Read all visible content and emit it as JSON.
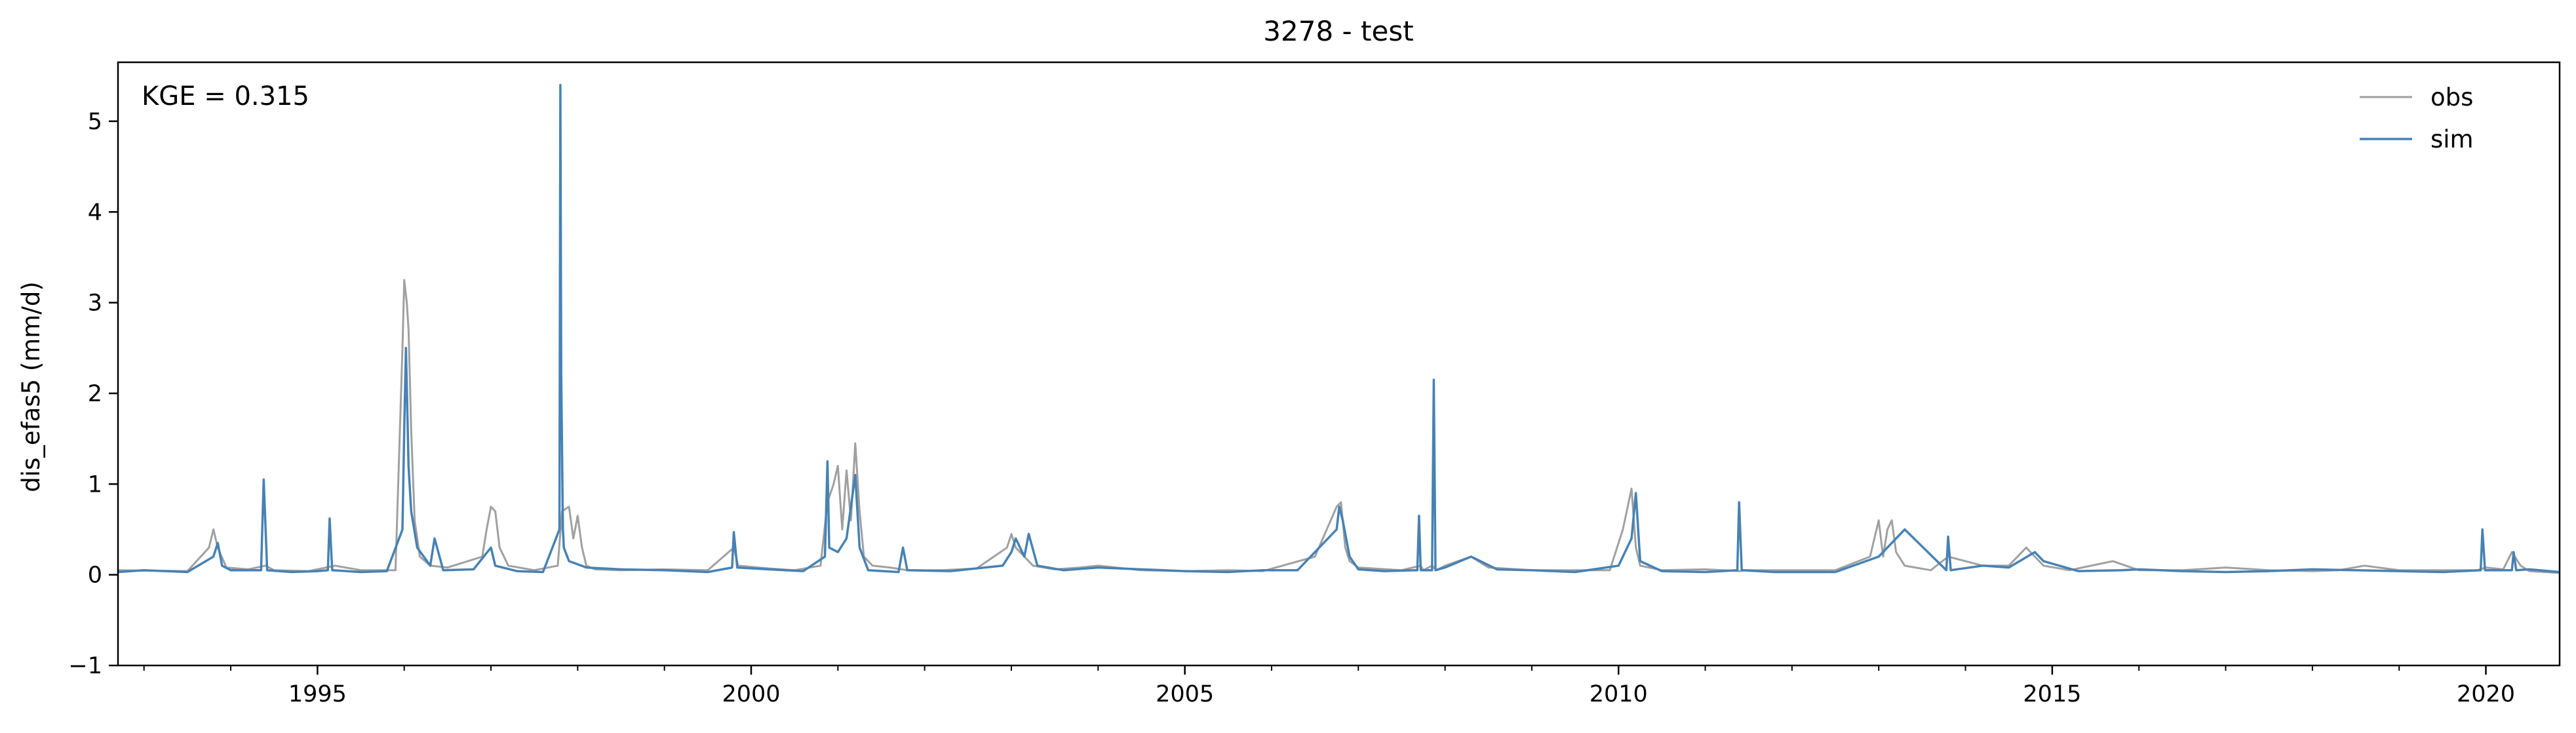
{
  "chart_data": {
    "type": "line",
    "title": "3278 - test",
    "xlabel": "",
    "ylabel": "dis_efas5 (mm/d)",
    "annotation": "KGE = 0.315",
    "xlim": [
      1992.7,
      2020.85
    ],
    "ylim": [
      -1,
      5.65
    ],
    "x_ticks": [
      1995,
      2000,
      2005,
      2010,
      2015,
      2020
    ],
    "x_tick_labels": [
      "1995",
      "2000",
      "2005",
      "2010",
      "2015",
      "2020"
    ],
    "y_ticks": [
      -1,
      0,
      1,
      2,
      3,
      4,
      5
    ],
    "y_tick_labels": [
      "−1",
      "0",
      "1",
      "2",
      "3",
      "4",
      "5"
    ],
    "grid": false,
    "legend_position": "top-right",
    "series": [
      {
        "name": "obs",
        "color": "#a0a0a0",
        "x": [
          1992.7,
          1993.5,
          1993.75,
          1993.8,
          1993.85,
          1993.95,
          1994.2,
          1994.4,
          1994.5,
          1994.9,
          1995.2,
          1995.5,
          1995.9,
          1995.98,
          1996.0,
          1996.03,
          1996.05,
          1996.08,
          1996.12,
          1996.18,
          1996.3,
          1996.5,
          1996.9,
          1996.95,
          1997.0,
          1997.05,
          1997.1,
          1997.2,
          1997.5,
          1997.77,
          1997.82,
          1997.9,
          1997.95,
          1998.0,
          1998.05,
          1998.1,
          1998.2,
          1998.5,
          1999.0,
          1999.5,
          1999.8,
          1999.85,
          2000.2,
          2000.5,
          2000.8,
          2000.88,
          2000.95,
          2001.0,
          2001.05,
          2001.1,
          2001.15,
          2001.2,
          2001.25,
          2001.3,
          2001.4,
          2001.6,
          2001.8,
          2002.2,
          2002.6,
          2002.95,
          2003.0,
          2003.05,
          2003.15,
          2003.25,
          2003.5,
          2003.8,
          2004.0,
          2004.5,
          2005.0,
          2005.5,
          2005.9,
          2006.5,
          2006.75,
          2006.8,
          2006.85,
          2006.9,
          2007.0,
          2007.5,
          2007.72,
          2007.75,
          2007.85,
          2007.9,
          2008.0,
          2008.3,
          2008.5,
          2009.0,
          2009.5,
          2009.9,
          2010.05,
          2010.15,
          2010.2,
          2010.25,
          2010.5,
          2011.0,
          2011.4,
          2011.45,
          2011.8,
          2012.5,
          2012.9,
          2013.0,
          2013.05,
          2013.1,
          2013.15,
          2013.2,
          2013.3,
          2013.6,
          2013.8,
          2014.2,
          2014.5,
          2014.7,
          2014.8,
          2014.9,
          2015.2,
          2015.7,
          2016.0,
          2016.5,
          2017.0,
          2017.5,
          2018.0,
          2018.3,
          2018.6,
          2019.0,
          2019.5,
          2019.9,
          2020.0,
          2020.2,
          2020.3,
          2020.4,
          2020.5,
          2020.85
        ],
        "values": [
          0.05,
          0.04,
          0.3,
          0.5,
          0.3,
          0.08,
          0.06,
          0.1,
          0.05,
          0.04,
          0.1,
          0.05,
          0.05,
          2.5,
          3.25,
          3.0,
          2.7,
          1.6,
          0.6,
          0.2,
          0.1,
          0.08,
          0.2,
          0.5,
          0.75,
          0.7,
          0.3,
          0.1,
          0.05,
          0.1,
          0.7,
          0.75,
          0.4,
          0.65,
          0.3,
          0.1,
          0.06,
          0.05,
          0.06,
          0.05,
          0.3,
          0.1,
          0.07,
          0.05,
          0.1,
          0.8,
          1.0,
          1.2,
          0.5,
          1.15,
          0.6,
          1.45,
          0.7,
          0.2,
          0.1,
          0.08,
          0.05,
          0.05,
          0.07,
          0.3,
          0.45,
          0.3,
          0.2,
          0.1,
          0.06,
          0.08,
          0.1,
          0.05,
          0.04,
          0.05,
          0.04,
          0.2,
          0.75,
          0.8,
          0.3,
          0.15,
          0.08,
          0.05,
          0.1,
          0.05,
          0.1,
          0.05,
          0.1,
          0.2,
          0.08,
          0.05,
          0.05,
          0.05,
          0.5,
          0.95,
          0.3,
          0.1,
          0.05,
          0.06,
          0.04,
          0.05,
          0.05,
          0.05,
          0.2,
          0.6,
          0.2,
          0.5,
          0.6,
          0.25,
          0.1,
          0.05,
          0.2,
          0.1,
          0.1,
          0.3,
          0.2,
          0.1,
          0.05,
          0.15,
          0.05,
          0.05,
          0.08,
          0.05,
          0.04,
          0.05,
          0.1,
          0.05,
          0.05,
          0.05,
          0.08,
          0.06,
          0.25,
          0.1,
          0.04,
          0.02
        ]
      },
      {
        "name": "sim",
        "color": "#4682b4",
        "x": [
          1992.7,
          1993.0,
          1993.5,
          1993.8,
          1993.85,
          1993.9,
          1994.0,
          1994.35,
          1994.38,
          1994.42,
          1994.7,
          1995.0,
          1995.12,
          1995.14,
          1995.17,
          1995.5,
          1995.8,
          1995.98,
          1996.0,
          1996.02,
          1996.05,
          1996.08,
          1996.15,
          1996.3,
          1996.35,
          1996.45,
          1996.8,
          1997.0,
          1997.05,
          1997.3,
          1997.6,
          1997.79,
          1997.8,
          1997.81,
          1997.83,
          1997.84,
          1997.9,
          1998.1,
          1998.5,
          1999.0,
          1999.5,
          1999.78,
          1999.8,
          1999.84,
          2000.2,
          2000.6,
          2000.85,
          2000.88,
          2000.9,
          2001.0,
          2001.1,
          2001.2,
          2001.25,
          2001.35,
          2001.7,
          2001.75,
          2001.8,
          2002.3,
          2002.9,
          2003.0,
          2003.05,
          2003.15,
          2003.2,
          2003.3,
          2003.6,
          2004.0,
          2004.5,
          2005.0,
          2005.5,
          2005.9,
          2006.3,
          2006.75,
          2006.78,
          2006.82,
          2006.9,
          2007.0,
          2007.3,
          2007.68,
          2007.7,
          2007.72,
          2007.85,
          2007.87,
          2007.89,
          2008.0,
          2008.3,
          2008.6,
          2009.0,
          2009.5,
          2010.0,
          2010.15,
          2010.2,
          2010.25,
          2010.5,
          2011.0,
          2011.37,
          2011.39,
          2011.42,
          2011.8,
          2012.5,
          2013.0,
          2013.3,
          2013.78,
          2013.8,
          2013.83,
          2014.2,
          2014.5,
          2014.8,
          2014.9,
          2015.3,
          2015.8,
          2016.0,
          2016.5,
          2017.0,
          2017.5,
          2018.0,
          2018.5,
          2019.0,
          2019.5,
          2019.94,
          2019.96,
          2019.99,
          2020.1,
          2020.3,
          2020.32,
          2020.35,
          2020.5,
          2020.85
        ],
        "values": [
          0.03,
          0.05,
          0.03,
          0.2,
          0.35,
          0.1,
          0.05,
          0.05,
          1.05,
          0.05,
          0.03,
          0.04,
          0.05,
          0.62,
          0.05,
          0.03,
          0.04,
          0.5,
          1.6,
          2.5,
          1.2,
          0.7,
          0.3,
          0.1,
          0.4,
          0.05,
          0.06,
          0.3,
          0.1,
          0.04,
          0.03,
          0.5,
          5.4,
          2.2,
          0.5,
          0.3,
          0.15,
          0.08,
          0.06,
          0.05,
          0.03,
          0.08,
          0.47,
          0.08,
          0.06,
          0.04,
          0.2,
          1.25,
          0.3,
          0.25,
          0.4,
          1.1,
          0.3,
          0.05,
          0.03,
          0.3,
          0.05,
          0.04,
          0.1,
          0.25,
          0.4,
          0.2,
          0.45,
          0.1,
          0.05,
          0.08,
          0.06,
          0.04,
          0.03,
          0.05,
          0.05,
          0.5,
          0.75,
          0.6,
          0.2,
          0.06,
          0.04,
          0.05,
          0.65,
          0.05,
          0.05,
          2.15,
          0.05,
          0.08,
          0.2,
          0.06,
          0.05,
          0.03,
          0.1,
          0.4,
          0.9,
          0.15,
          0.04,
          0.03,
          0.05,
          0.8,
          0.05,
          0.03,
          0.03,
          0.2,
          0.5,
          0.05,
          0.42,
          0.05,
          0.1,
          0.08,
          0.25,
          0.15,
          0.04,
          0.05,
          0.06,
          0.04,
          0.03,
          0.04,
          0.06,
          0.05,
          0.04,
          0.03,
          0.05,
          0.5,
          0.05,
          0.05,
          0.05,
          0.25,
          0.05,
          0.06,
          0.03
        ]
      }
    ]
  }
}
